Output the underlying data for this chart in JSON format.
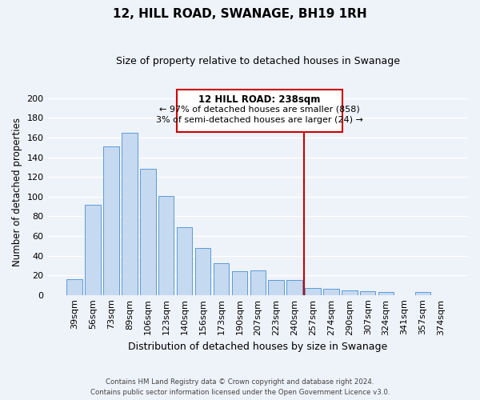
{
  "title": "12, HILL ROAD, SWANAGE, BH19 1RH",
  "subtitle": "Size of property relative to detached houses in Swanage",
  "xlabel": "Distribution of detached houses by size in Swanage",
  "ylabel": "Number of detached properties",
  "bar_labels": [
    "39sqm",
    "56sqm",
    "73sqm",
    "89sqm",
    "106sqm",
    "123sqm",
    "140sqm",
    "156sqm",
    "173sqm",
    "190sqm",
    "207sqm",
    "223sqm",
    "240sqm",
    "257sqm",
    "274sqm",
    "290sqm",
    "307sqm",
    "324sqm",
    "341sqm",
    "357sqm",
    "374sqm"
  ],
  "bar_values": [
    16,
    92,
    151,
    165,
    128,
    101,
    69,
    48,
    32,
    24,
    25,
    15,
    15,
    7,
    6,
    5,
    4,
    3,
    0,
    3,
    0
  ],
  "bar_color": "#c5d9f1",
  "bar_edge_color": "#5b9bd5",
  "annotation_title": "12 HILL ROAD: 238sqm",
  "annotation_line1": "← 97% of detached houses are smaller (858)",
  "annotation_line2": "3% of semi-detached houses are larger (24) →",
  "vline_x_index": 12,
  "vline_color": "#cc0000",
  "ylim": [
    0,
    210
  ],
  "yticks": [
    0,
    20,
    40,
    60,
    80,
    100,
    120,
    140,
    160,
    180,
    200
  ],
  "footer_line1": "Contains HM Land Registry data © Crown copyright and database right 2024.",
  "footer_line2": "Contains public sector information licensed under the Open Government Licence v3.0.",
  "bg_color": "#eef2f9",
  "grid_color": "#ffffff"
}
